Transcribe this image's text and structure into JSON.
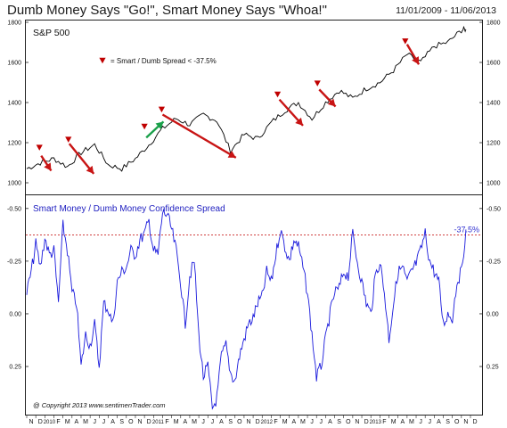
{
  "header": {
    "title": "Dumb Money Says \"Go!\", Smart Money Says \"Whoa!\"",
    "date_range": "11/01/2009 - 11/06/2013"
  },
  "colors": {
    "price_line": "#000000",
    "spread_line": "#1a1adc",
    "signal_marker": "#c00000",
    "decline_arrow": "#c81414",
    "rally_arrow": "#1aa04a",
    "threshold_line": "#c00000",
    "panel_label": "#2020c0",
    "threshold_label": "#3030d0"
  },
  "chart_data": [
    {
      "type": "line",
      "title": "S&P 500",
      "legend_text": "= Smart / Dumb Spread < -37.5%",
      "ylim": [
        960,
        1800
      ],
      "yticks": [
        1000,
        1200,
        1400,
        1600,
        1800
      ],
      "tick_labels": [
        "1000",
        "1200",
        "1400",
        "1600",
        "1800"
      ],
      "series": [
        {
          "date_x": [
            0,
            1.5,
            3,
            4.5,
            6,
            7.5,
            9,
            10.5,
            12,
            13.5,
            15,
            16.5,
            18,
            19.5,
            21,
            22.5,
            24,
            25.5,
            27,
            28.5,
            30,
            31.5,
            33,
            34.5,
            36,
            37.5,
            39,
            40.5,
            42,
            43.5,
            45,
            46.5,
            48,
            48.5
          ],
          "values": [
            1070,
            1100,
            1120,
            1080,
            1150,
            1190,
            1090,
            1070,
            1120,
            1190,
            1270,
            1320,
            1290,
            1340,
            1310,
            1160,
            1240,
            1220,
            1300,
            1360,
            1400,
            1320,
            1400,
            1460,
            1420,
            1470,
            1500,
            1560,
            1640,
            1600,
            1680,
            1700,
            1760,
            1765
          ]
        }
      ],
      "signal_markers": [
        {
          "date_x": 1.4,
          "value": 1175
        },
        {
          "date_x": 4.6,
          "value": 1215
        },
        {
          "date_x": 13.0,
          "value": 1280
        },
        {
          "date_x": 14.9,
          "value": 1365
        },
        {
          "date_x": 27.7,
          "value": 1440
        },
        {
          "date_x": 32.1,
          "value": 1495
        },
        {
          "date_x": 41.8,
          "value": 1705
        }
      ],
      "decline_arrows": [
        {
          "from": [
            1.6,
            1135
          ],
          "to": [
            2.7,
            1060
          ]
        },
        {
          "from": [
            4.7,
            1195
          ],
          "to": [
            7.4,
            1045
          ]
        },
        {
          "from": [
            15.0,
            1340
          ],
          "to": [
            23.1,
            1125
          ]
        },
        {
          "from": [
            27.9,
            1415
          ],
          "to": [
            30.5,
            1285
          ]
        },
        {
          "from": [
            32.3,
            1465
          ],
          "to": [
            34.1,
            1380
          ]
        },
        {
          "from": [
            42.0,
            1690
          ],
          "to": [
            43.3,
            1590
          ]
        }
      ],
      "rally_arrow": {
        "from": [
          13.2,
          1225
        ],
        "to": [
          15.1,
          1305
        ]
      }
    },
    {
      "type": "line",
      "title": "Smart Money  / Dumb Money  Confidence Spread",
      "ylim": [
        -0.55,
        0.47
      ],
      "yticks": [
        -0.5,
        -0.25,
        0.0,
        0.25
      ],
      "tick_labels": [
        "-0.50",
        "-0.25",
        "0.00",
        "0.25"
      ],
      "threshold": {
        "value": -0.375,
        "label": "-37.5%"
      },
      "annotation": "@ Copyright 2013  www.sentimenTrader.com",
      "x_ticks": [
        "N",
        "D",
        "2010",
        "F",
        "M",
        "A",
        "M",
        "J",
        "J",
        "A",
        "S",
        "O",
        "N",
        "D",
        "2011",
        "F",
        "M",
        "A",
        "M",
        "J",
        "J",
        "A",
        "S",
        "O",
        "N",
        "D",
        "2012",
        "F",
        "M",
        "A",
        "M",
        "J",
        "J",
        "A",
        "S",
        "O",
        "N",
        "D",
        "2013",
        "F",
        "M",
        "A",
        "M",
        "J",
        "J",
        "A",
        "S",
        "O",
        "N",
        "D"
      ],
      "series": [
        {
          "date_x": [
            0,
            0.5,
            1,
            1.5,
            2,
            2.5,
            3,
            3.5,
            4,
            4.5,
            5,
            5.5,
            6,
            6.5,
            7,
            7.5,
            8,
            8.5,
            9,
            9.5,
            10,
            10.5,
            11,
            11.5,
            12,
            12.5,
            13,
            13.5,
            14,
            14.5,
            15,
            15.5,
            16,
            16.5,
            17,
            17.5,
            18,
            18.5,
            19,
            19.5,
            20,
            20.5,
            21,
            21.5,
            22,
            22.5,
            23,
            23.5,
            24,
            24.5,
            25,
            25.5,
            26,
            26.5,
            27,
            27.5,
            28,
            28.5,
            29,
            29.5,
            30,
            30.5,
            31,
            31.5,
            32,
            32.5,
            33,
            33.5,
            34,
            34.5,
            35,
            35.5,
            36,
            36.5,
            37,
            37.5,
            38,
            38.5,
            39,
            39.5,
            40,
            40.5,
            41,
            41.5,
            42,
            42.5,
            43,
            43.5,
            44,
            44.5,
            45,
            45.5,
            46,
            46.5,
            47,
            47.5,
            48,
            48.5
          ],
          "values": [
            -0.1,
            -0.2,
            -0.33,
            -0.22,
            -0.36,
            -0.28,
            -0.3,
            -0.05,
            -0.42,
            -0.3,
            -0.1,
            -0.05,
            0.25,
            0.1,
            0.15,
            0.05,
            0.25,
            -0.05,
            -0.02,
            0.05,
            -0.15,
            -0.2,
            -0.22,
            -0.3,
            -0.28,
            -0.35,
            -0.38,
            -0.44,
            -0.3,
            -0.28,
            -0.48,
            -0.47,
            -0.4,
            -0.3,
            -0.15,
            0.05,
            -0.18,
            -0.25,
            0.1,
            0.3,
            0.25,
            0.45,
            0.4,
            0.2,
            0.15,
            0.28,
            0.32,
            0.2,
            0.12,
            0.05,
            0.02,
            -0.05,
            -0.08,
            -0.2,
            -0.15,
            -0.28,
            -0.4,
            -0.32,
            -0.25,
            -0.35,
            -0.32,
            -0.22,
            -0.1,
            0.1,
            0.3,
            0.25,
            0.12,
            0.0,
            -0.1,
            -0.12,
            -0.2,
            -0.18,
            -0.38,
            -0.25,
            -0.15,
            -0.05,
            0.0,
            -0.18,
            -0.25,
            -0.1,
            0.12,
            -0.05,
            -0.2,
            -0.22,
            -0.15,
            -0.2,
            -0.24,
            -0.3,
            -0.38,
            -0.25,
            -0.2,
            -0.15,
            0.05,
            0.0,
            0.02,
            -0.15,
            -0.2,
            -0.4
          ]
        }
      ]
    }
  ]
}
